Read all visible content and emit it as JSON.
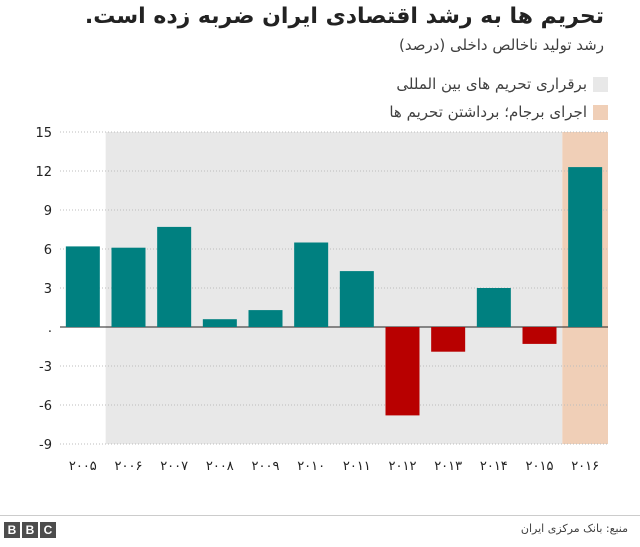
{
  "chart_data": {
    "type": "bar",
    "title": "تحریم ها به رشد اقتصادی ایران ضربه زده است.",
    "subtitle": "رشد تولید ناخالص داخلی (درصد)",
    "categories": [
      "۲۰۰۵",
      "۲۰۰۶",
      "۲۰۰۷",
      "۲۰۰۸",
      "۲۰۰۹",
      "۲۰۱۰",
      "۲۰۱۱",
      "۲۰۱۲",
      "۲۰۱۳",
      "۲۰۱۴",
      "۲۰۱۵",
      "۲۰۱۶"
    ],
    "values": [
      6.2,
      6.1,
      7.7,
      0.6,
      1.3,
      6.5,
      4.3,
      -6.8,
      -1.9,
      3.0,
      -1.3,
      12.3
    ],
    "y_ticks": [
      15,
      12,
      9,
      6,
      3,
      0,
      -3,
      -6,
      -9
    ],
    "y_tick_labels": [
      "15",
      "12",
      "9",
      "6",
      "3",
      ".",
      "-3",
      "-6",
      "-9"
    ],
    "ylim": [
      -9,
      15
    ],
    "positive_color": "#008080",
    "negative_color": "#b80000",
    "shaded_regions": [
      {
        "label": "برقراری تحریم های بین المللی",
        "from_index": 1,
        "to_index": 10,
        "color": "#e8e8e8"
      },
      {
        "label": "اجرای برجام؛ برداشتن تحریم ها",
        "from_index": 11,
        "to_index": 11,
        "color": "#f0cfb7"
      }
    ],
    "grid": true,
    "legend_position": "top-right"
  },
  "footer": {
    "logo_letters": [
      "B",
      "B",
      "C"
    ],
    "source": "منبع: بانک مرکزی ایران"
  }
}
